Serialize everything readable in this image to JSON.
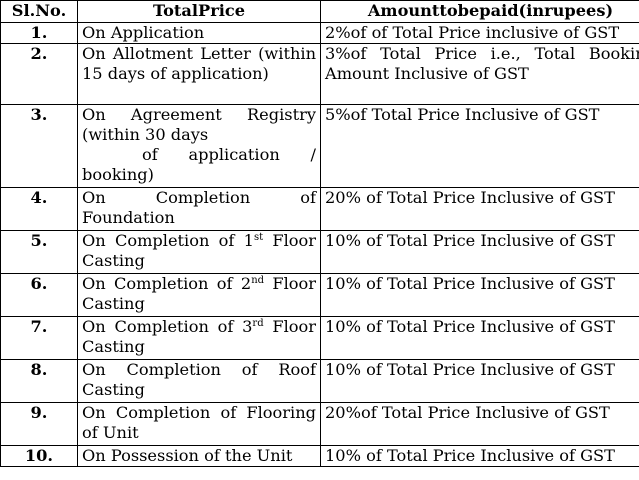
{
  "headers": {
    "sl_no": "Sl.No.",
    "total_price": "TotalPrice",
    "amount": "Amounttobepaid(inrupees)"
  },
  "rows": [
    {
      "sl": "1.",
      "stage": "On Application",
      "amount": "2%of of Total Price inclusive of GST"
    },
    {
      "sl": "2.",
      "stage": "On Allotment Letter (within 15 days of application)",
      "amount": "3%of Total Price i.e., Total Booking Amount Inclusive of GST"
    },
    {
      "sl": "3.",
      "stage_line1": "On Agreement Registry (within 30 days",
      "stage_line2": "of application /",
      "stage_line3": "booking)",
      "amount": "5%of Total Price Inclusive of GST"
    },
    {
      "sl": "4.",
      "stage": "On Completion of Foundation",
      "amount": "20% of Total Price Inclusive of GST"
    },
    {
      "sl": "5.",
      "stage_pre": "On Completion of 1",
      "stage_sup": "st",
      "stage_post": " Floor Casting",
      "amount": "10% of Total Price Inclusive of GST"
    },
    {
      "sl": "6.",
      "stage_pre": "On Completion of 2",
      "stage_sup": "nd",
      "stage_post": " Floor Casting",
      "amount": "10% of Total Price Inclusive of GST"
    },
    {
      "sl": "7.",
      "stage_pre": "On Completion of 3",
      "stage_sup": "rd",
      "stage_post": " Floor Casting",
      "amount": "10% of Total Price Inclusive of GST"
    },
    {
      "sl": "8.",
      "stage": "On Completion of Roof Casting",
      "amount": "10% of Total Price Inclusive of GST"
    },
    {
      "sl": "9.",
      "stage": "On Completion of Flooring of Unit",
      "amount": "20%of Total Price Inclusive of GST"
    },
    {
      "sl": "10.",
      "stage": "On Possession of the Unit",
      "amount": "10% of Total Price Inclusive of GST"
    }
  ]
}
